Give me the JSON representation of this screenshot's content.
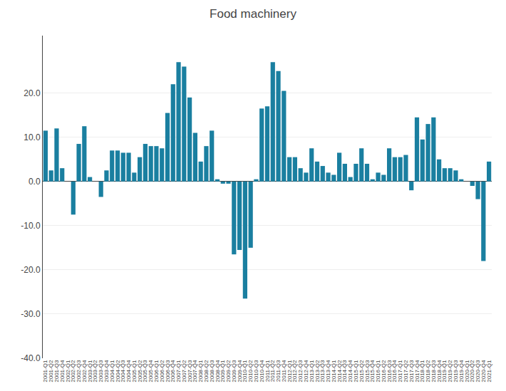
{
  "chart_data": {
    "type": "bar",
    "title": "Food machinery",
    "categories": [
      "2001-Q1",
      "2001-Q2",
      "2001-Q3",
      "2001-Q4",
      "2002-Q1",
      "2002-Q2",
      "2002-Q3",
      "2002-Q4",
      "2003-Q1",
      "2003-Q2",
      "2003-Q3",
      "2003-Q4",
      "2004-Q1",
      "2004-Q2",
      "2004-Q3",
      "2004-Q4",
      "2005-Q1",
      "2005-Q2",
      "2005-Q3",
      "2005-Q4",
      "2006-Q1",
      "2006-Q2",
      "2006-Q3",
      "2006-Q4",
      "2007-Q1",
      "2007-Q2",
      "2007-Q3",
      "2007-Q4",
      "2008-Q1",
      "2008-Q2",
      "2008-Q3",
      "2008-Q4",
      "2009-Q1",
      "2009-Q2",
      "2009-Q3",
      "2009-Q4",
      "2010-Q1",
      "2010-Q2",
      "2010-Q3",
      "2010-Q4",
      "2011-Q1",
      "2011-Q2",
      "2011-Q3",
      "2011-Q4",
      "2012-Q1",
      "2012-Q2",
      "2012-Q3",
      "2012-Q4",
      "2013-Q1",
      "2013-Q2",
      "2013-Q3",
      "2013-Q4",
      "2014-Q1",
      "2014-Q2",
      "2014-Q3",
      "2014-Q4",
      "2015-Q1",
      "2015-Q2",
      "2015-Q3",
      "2015-Q4",
      "2016-Q1",
      "2016-Q2",
      "2016-Q3",
      "2016-Q4",
      "2017-Q1",
      "2017-Q2",
      "2017-Q3",
      "2017-Q4",
      "2018-Q1",
      "2018-Q2",
      "2018-Q3",
      "2018-Q4",
      "2019-Q1",
      "2019-Q2",
      "2019-Q3",
      "2019-Q4",
      "2020-Q1",
      "2020-Q2",
      "2020-Q3",
      "2020-Q4",
      "2021-Q1"
    ],
    "values": [
      11.5,
      2.5,
      12.0,
      3.0,
      0.0,
      -7.5,
      8.5,
      12.5,
      1.0,
      0.0,
      -3.5,
      2.5,
      7.0,
      7.0,
      6.5,
      6.5,
      2.0,
      5.5,
      8.5,
      8.0,
      8.0,
      7.5,
      15.5,
      22.0,
      27.0,
      26.0,
      19.0,
      11.0,
      4.5,
      8.0,
      11.5,
      0.5,
      -0.5,
      -0.5,
      -16.5,
      -15.5,
      -26.5,
      -15.0,
      0.5,
      16.5,
      17.0,
      27.0,
      25.0,
      20.5,
      5.5,
      5.5,
      3.0,
      2.0,
      7.5,
      4.5,
      3.5,
      2.0,
      1.5,
      6.5,
      4.0,
      1.0,
      4.0,
      7.5,
      4.0,
      0.5,
      2.0,
      1.5,
      7.5,
      5.5,
      5.5,
      6.0,
      -2.0,
      14.5,
      9.5,
      13.0,
      14.5,
      5.0,
      3.0,
      3.0,
      2.5,
      0.5,
      0.0,
      -1.0,
      -4.0,
      -18.0,
      4.5
    ],
    "color": "#1a7fa0",
    "ylim": [
      -40,
      33
    ],
    "yticks": [
      {
        "value": -40,
        "label": "-40.0"
      },
      {
        "value": -30,
        "label": "-30.0"
      },
      {
        "value": -20,
        "label": "-20.0"
      },
      {
        "value": -10,
        "label": "-10.0"
      },
      {
        "value": 0,
        "label": "0.0"
      },
      {
        "value": 10,
        "label": "10.0"
      },
      {
        "value": 20,
        "label": "20.0"
      }
    ],
    "grid": true
  }
}
